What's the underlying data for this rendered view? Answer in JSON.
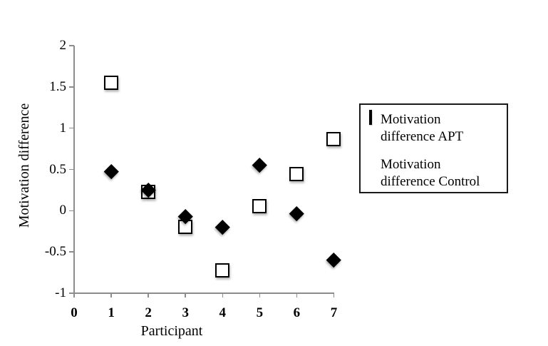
{
  "chart_data": {
    "type": "scatter",
    "title": "",
    "xlabel": "Participant",
    "ylabel": "Motivation difference",
    "xlim": [
      0,
      7
    ],
    "ylim": [
      -1,
      2
    ],
    "x_ticks": [
      "0",
      "1",
      "2",
      "3",
      "4",
      "5",
      "6",
      "7"
    ],
    "y_ticks": [
      "2",
      "1.5",
      "1",
      "0.5",
      "0",
      "-0.5",
      "-1"
    ],
    "grid": false,
    "legend_position": "right",
    "x": [
      1,
      2,
      3,
      4,
      5,
      6,
      7
    ],
    "series": [
      {
        "name": "Motivation difference APT",
        "marker": "open-square",
        "values": [
          1.55,
          0.22,
          -0.2,
          -0.73,
          0.05,
          0.44,
          0.86
        ]
      },
      {
        "name": "Motivation difference Control",
        "marker": "filled-diamond",
        "values": [
          0.48,
          0.25,
          -0.07,
          -0.2,
          0.55,
          -0.03,
          -0.6
        ]
      }
    ]
  },
  "legend": {
    "items": [
      {
        "label": "Motivation\ndifference APT",
        "marker": "open-square"
      },
      {
        "label": "Motivation\ndifference Control",
        "marker": "filled-diamond"
      }
    ]
  },
  "colors": {
    "marker": "#000000",
    "axis": "#8c8c8c",
    "text": "#000000",
    "background": "#ffffff"
  }
}
